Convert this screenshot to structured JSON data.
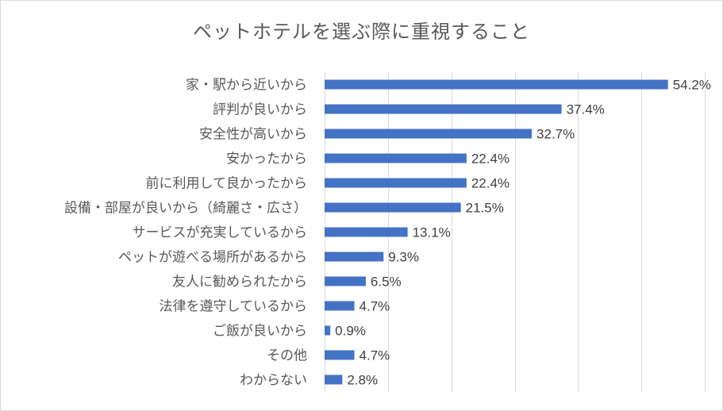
{
  "chart_data": {
    "type": "bar",
    "orientation": "horizontal",
    "title": "ペットホテルを選ぶ際に重視すること",
    "categories": [
      "家・駅から近いから",
      "評判が良いから",
      "安全性が高いから",
      "安かったから",
      "前に利用して良かったから",
      "設備・部屋が良いから（綺麗さ・広さ）",
      "サービスが充実しているから",
      "ペットが遊べる場所があるから",
      "友人に勧められたから",
      "法律を遵守しているから",
      "ご飯が良いから",
      "その他",
      "わからない"
    ],
    "values": [
      54.2,
      37.4,
      32.7,
      22.4,
      22.4,
      21.5,
      13.1,
      9.3,
      6.5,
      4.7,
      0.9,
      4.7,
      2.8
    ],
    "value_labels": [
      "54.2%",
      "37.4%",
      "32.7%",
      "22.4%",
      "22.4%",
      "21.5%",
      "13.1%",
      "9.3%",
      "6.5%",
      "4.7%",
      "0.9%",
      "4.7%",
      "2.8%"
    ],
    "xlim": [
      0,
      60
    ],
    "grid": true,
    "x_axis_tick_labels_shown": false,
    "bar_color": "#4472C4"
  }
}
